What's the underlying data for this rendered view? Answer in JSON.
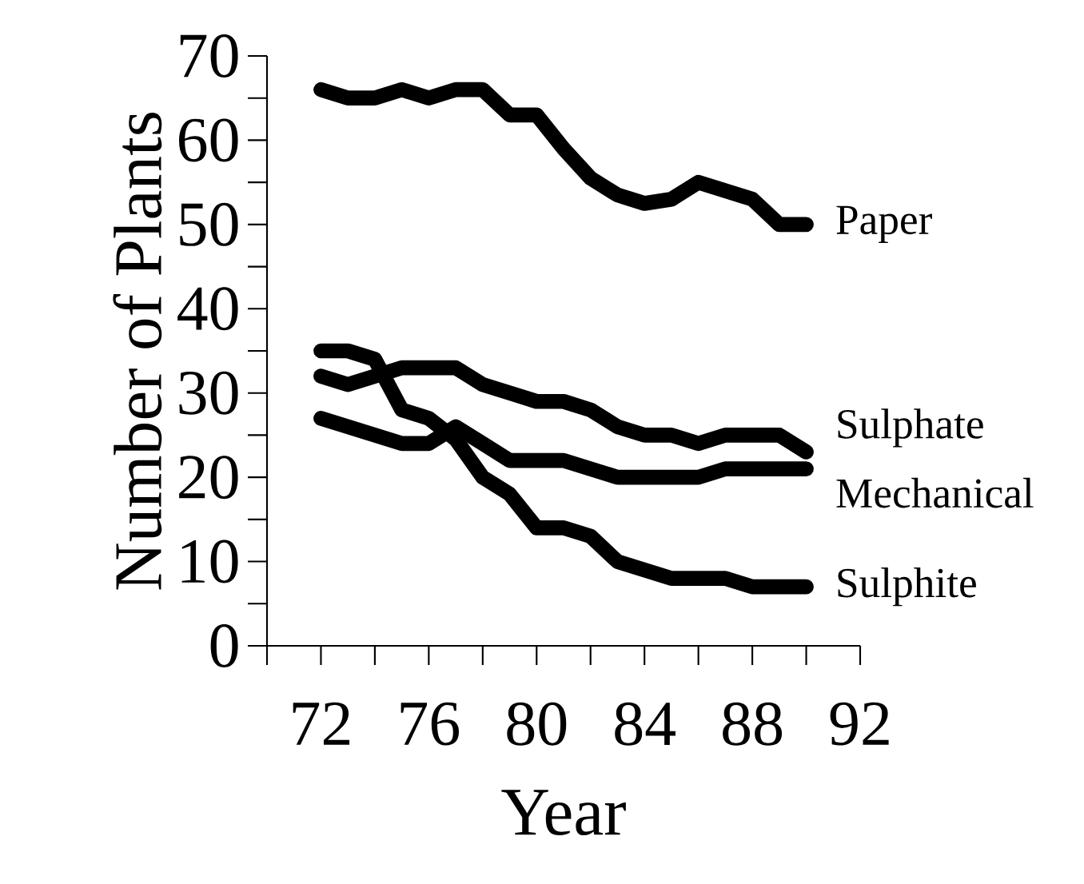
{
  "chart_data": {
    "type": "line",
    "xlabel": "Year",
    "ylabel": "Number of Plants",
    "x": [
      72,
      73,
      74,
      75,
      76,
      77,
      78,
      79,
      80,
      81,
      82,
      83,
      84,
      85,
      86,
      87,
      88,
      89,
      90
    ],
    "series": [
      {
        "name": "Paper",
        "color": "#000000",
        "values": [
          66,
          65,
          65,
          66,
          65,
          66,
          66,
          63,
          63,
          59,
          55.5,
          53.5,
          52.5,
          53,
          55,
          54,
          53,
          50,
          50
        ]
      },
      {
        "name": "Sulphate",
        "color": "#000000",
        "values": [
          32,
          31,
          32,
          33,
          33,
          33,
          31,
          30,
          29,
          29,
          28,
          26,
          25,
          25,
          24,
          25,
          25,
          25,
          23
        ]
      },
      {
        "name": "Mechanical",
        "color": "#000000",
        "values": [
          27,
          26,
          25,
          24,
          24,
          26,
          24,
          22,
          22,
          22,
          21,
          20,
          20,
          20,
          20,
          21,
          21,
          21,
          21
        ]
      },
      {
        "name": "Sulphite",
        "color": "#000000",
        "values": [
          35,
          35,
          34,
          28,
          27,
          24.5,
          20,
          18,
          14,
          14,
          13,
          10,
          9,
          8,
          8,
          8,
          7,
          7,
          7
        ]
      }
    ],
    "xlim": [
      70,
      92
    ],
    "xticks": [
      {
        "value": 70,
        "label": null
      },
      72,
      {
        "value": 74,
        "label": null
      },
      76,
      {
        "value": 78,
        "label": null
      },
      80,
      {
        "value": 82,
        "label": null
      },
      84,
      {
        "value": 86,
        "label": null
      },
      88,
      {
        "value": 90,
        "label": null
      },
      92
    ],
    "ylim": [
      0,
      70
    ],
    "yticks": [
      0,
      {
        "value": 5,
        "label": null
      },
      10,
      {
        "value": 15,
        "label": null
      },
      20,
      {
        "value": 25,
        "label": null
      },
      30,
      {
        "value": 35,
        "label": null
      },
      40,
      {
        "value": 45,
        "label": null
      },
      50,
      {
        "value": 55,
        "label": null
      },
      60,
      {
        "value": 65,
        "label": null
      },
      70
    ],
    "grid": false,
    "legend": false,
    "marker": "none",
    "line_style": "solid"
  }
}
